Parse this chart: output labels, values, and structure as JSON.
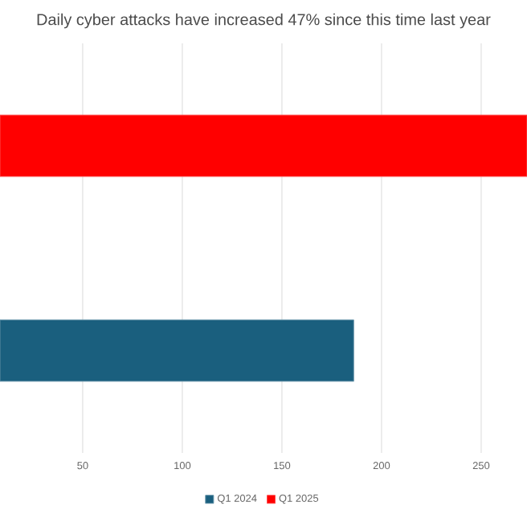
{
  "chart_data": {
    "type": "bar",
    "orientation": "horizontal",
    "title": "Daily cyber attacks have increased 47% since this time last year",
    "categories": [
      null
    ],
    "series": [
      {
        "name": "Q1 2024",
        "color": "#1a5f7e",
        "values": [
          186
        ]
      },
      {
        "name": "Q1 2025",
        "color": "#ff0000",
        "values": [
          273
        ]
      }
    ],
    "xlim": [
      8.5,
      273
    ],
    "xticks": [
      50,
      100,
      150,
      200,
      250
    ],
    "grid": "x",
    "legend": "bottom"
  }
}
